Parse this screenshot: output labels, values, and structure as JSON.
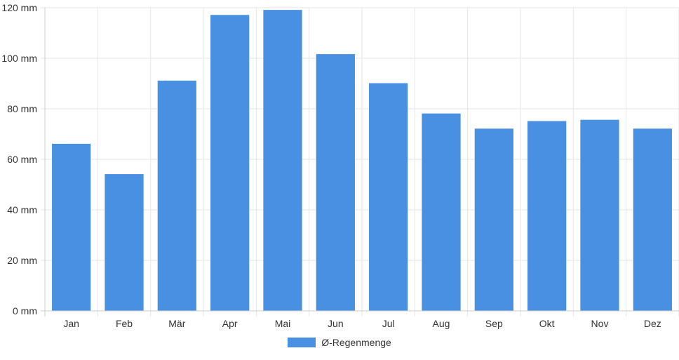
{
  "chart_data": {
    "type": "bar",
    "categories": [
      "Jan",
      "Feb",
      "Mär",
      "Apr",
      "Mai",
      "Jun",
      "Jul",
      "Aug",
      "Sep",
      "Okt",
      "Nov",
      "Dez"
    ],
    "series": [
      {
        "name": "Ø-Regenmenge",
        "values": [
          66,
          54,
          91,
          117,
          119,
          101.5,
          90,
          78,
          72,
          75,
          75.5,
          72
        ],
        "color": "#4a90e2"
      }
    ],
    "ylim": [
      0,
      120
    ],
    "y_ticks": [
      "0 mm",
      "20 mm",
      "40 mm",
      "60 mm",
      "80 mm",
      "100 mm",
      "120 mm"
    ],
    "y_tick_values": [
      0,
      20,
      40,
      60,
      80,
      100,
      120
    ],
    "grid": true,
    "legend": "bottom-center"
  }
}
